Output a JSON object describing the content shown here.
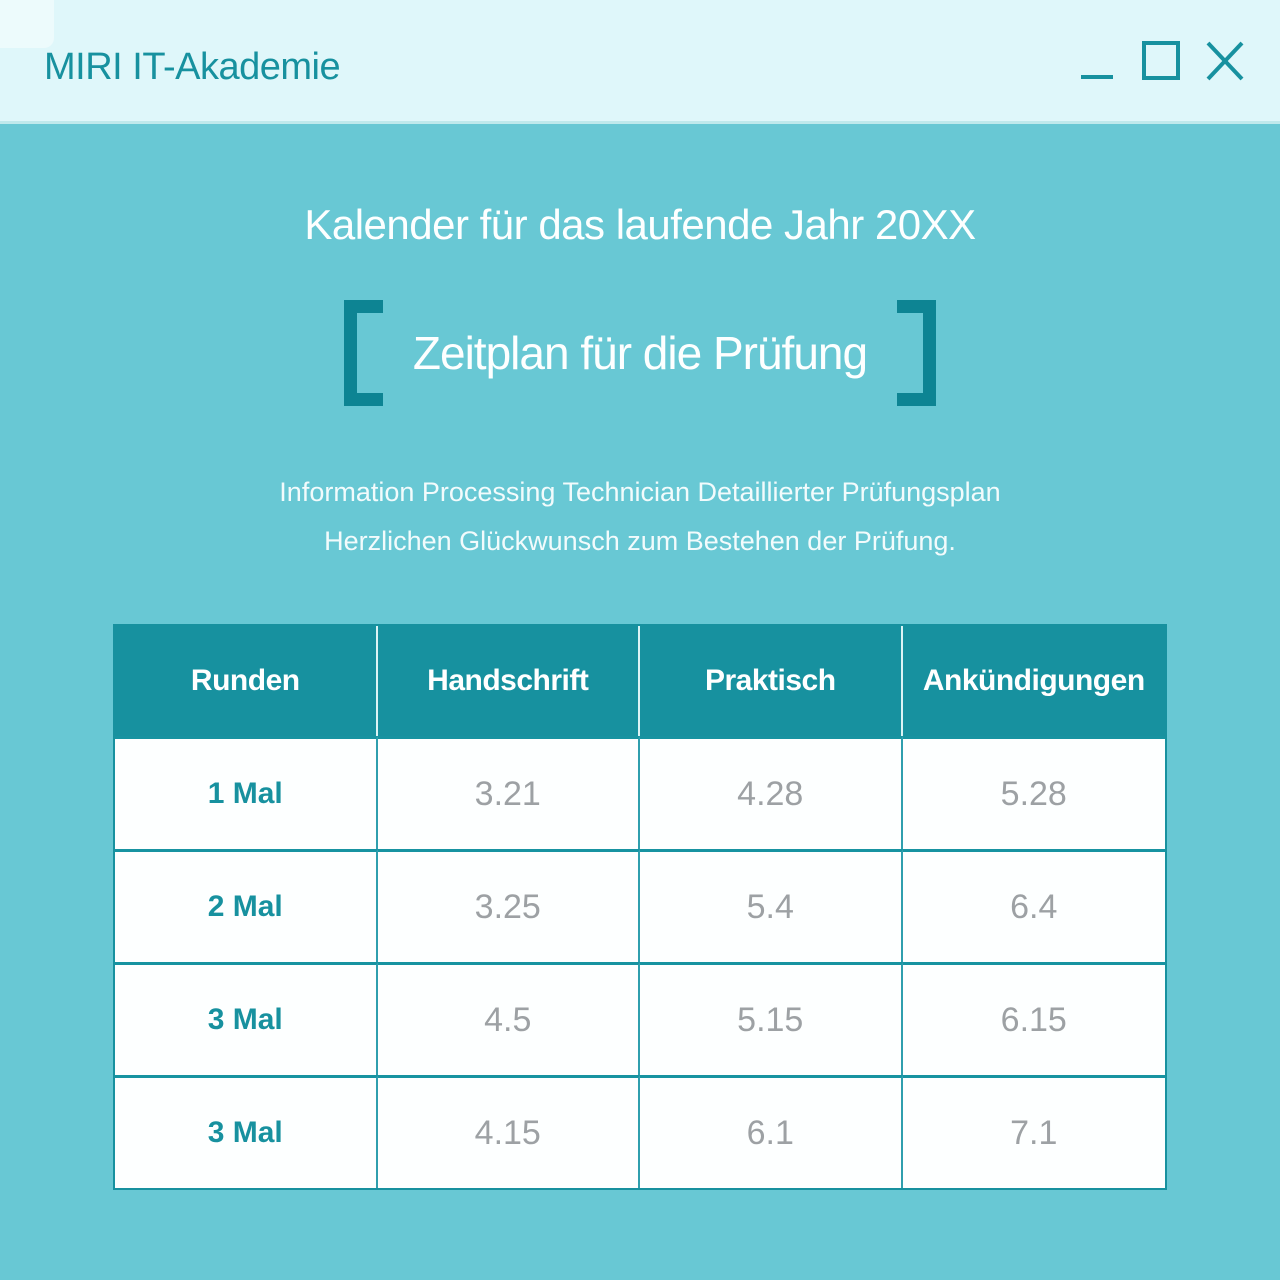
{
  "window": {
    "title": "MIRI IT-Akademie",
    "controls": {
      "minimize_icon": "minimize-icon",
      "maximize_icon": "maximize-icon",
      "close_icon": "close-icon"
    }
  },
  "main": {
    "heading": "Kalender für das laufende Jahr 20XX",
    "subtitle": "Zeitplan für die Prüfung",
    "description_lines": [
      "Information Processing Technician Detaillierter Prüfungsplan",
      "Herzlichen Glückwunsch zum Bestehen der Prüfung."
    ]
  },
  "table": {
    "columns": [
      "Runden",
      "Handschrift",
      "Praktisch",
      "Ankündigungen"
    ],
    "rows": [
      {
        "label": "1 Mal",
        "values": [
          "3.21",
          "4.28",
          "5.28"
        ]
      },
      {
        "label": "2 Mal",
        "values": [
          "3.25",
          "5.4",
          "6.4"
        ]
      },
      {
        "label": "3 Mal",
        "values": [
          "4.5",
          "5.15",
          "6.15"
        ]
      },
      {
        "label": "3 Mal",
        "values": [
          "4.15",
          "6.1",
          "7.1"
        ]
      }
    ]
  },
  "colors": {
    "titlebar_bg": "#dff7fa",
    "body_bg": "#68c8d4",
    "accent_teal": "#17919f",
    "bracket_teal": "#0d8493",
    "row_bg": "#fdffff",
    "value_gray": "#9da1a4",
    "heading_text": "#fdffff"
  }
}
